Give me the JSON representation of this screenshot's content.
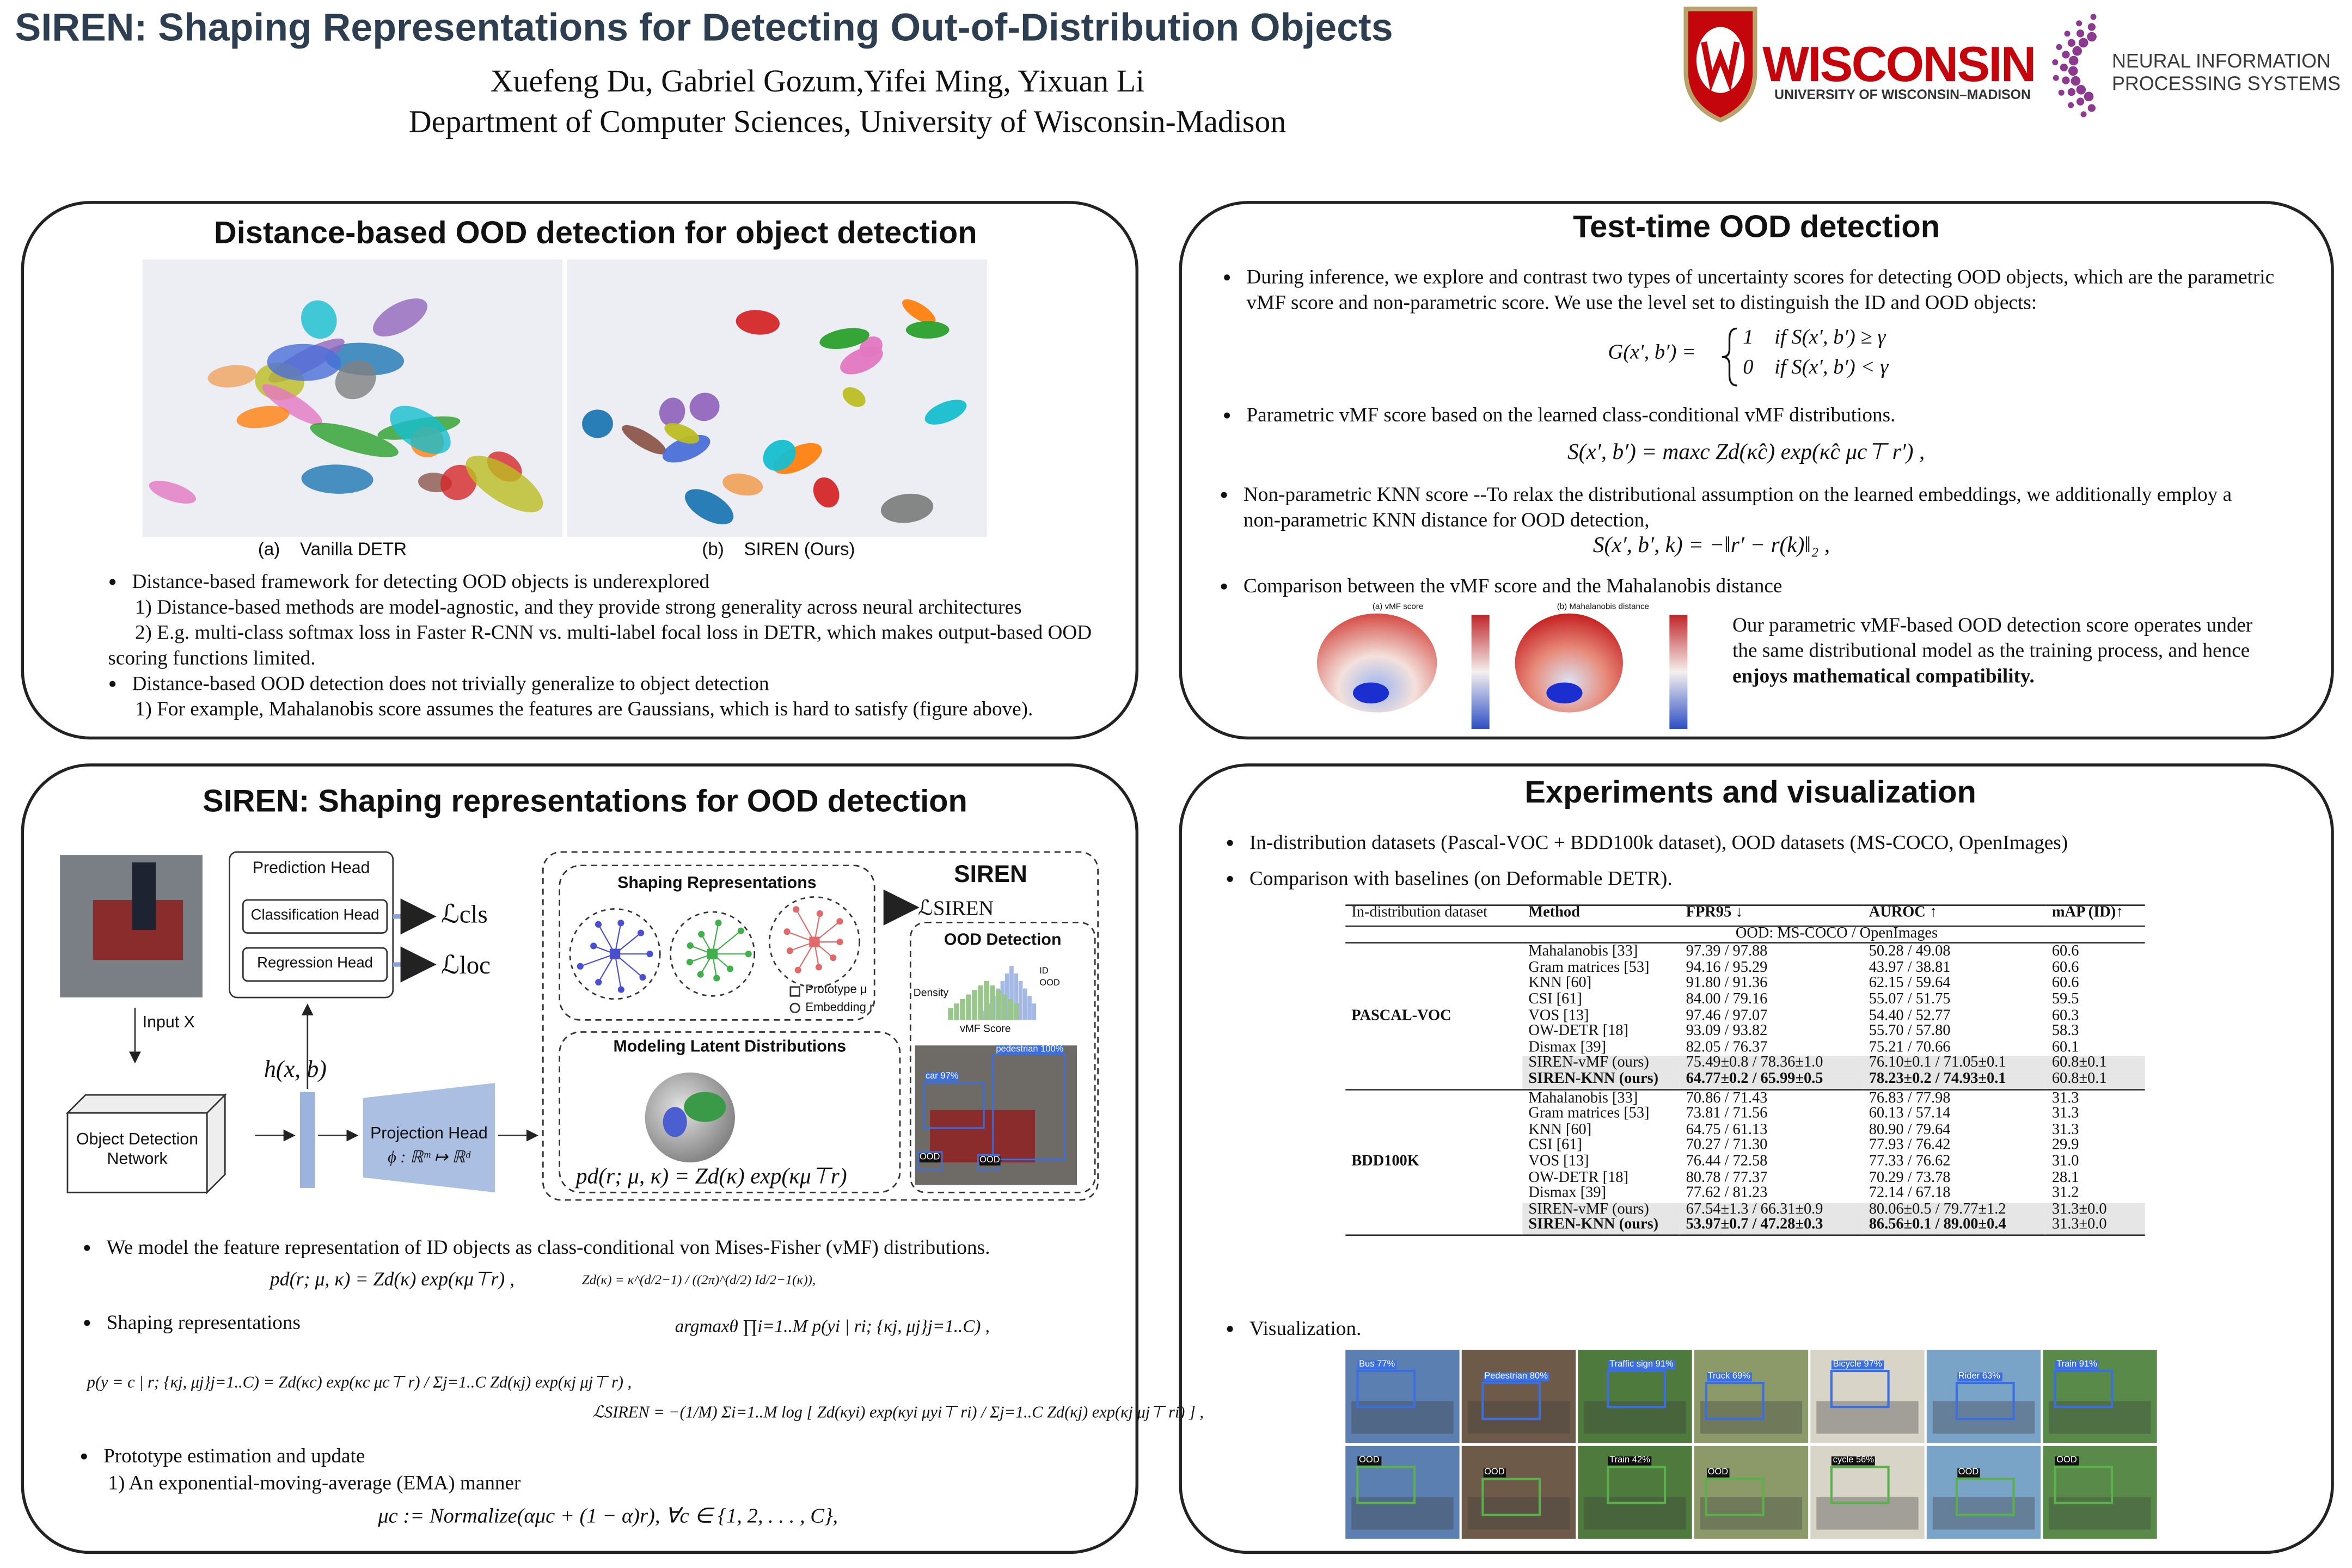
{
  "header": {
    "title": "SIREN: Shaping Representations  for Detecting Out-of-Distribution Objects",
    "authors": "Xuefeng Du, Gabriel Gozum,Yifei Ming, Yixuan Li",
    "affiliation": "Department of Computer Sciences, University of Wisconsin-Madison",
    "logo_wisconsin": "WISCONSIN",
    "logo_wisconsin_sub": "UNIVERSITY OF WISCONSIN–MADISON",
    "logo_neurips": [
      "NEURAL INFORMATION",
      "PROCESSING SYSTEMS"
    ]
  },
  "panel1": {
    "title": "Distance-based OOD detection for object detection",
    "captions": [
      "(a)    Vanilla DETR",
      "(b)    SIREN (Ours)"
    ],
    "bullets": [
      {
        "text": "Distance-based framework for detecting OOD objects is underexplored",
        "sub": [
          "1) Distance-based methods are model-agnostic, and they provide strong generality across neural architectures",
          "2) E.g. multi-class softmax loss in Faster R-CNN vs. multi-label focal loss in DETR, which makes output-based OOD scoring functions limited."
        ]
      },
      {
        "text": "Distance-based OOD detection does not trivially generalize to object detection",
        "sub": [
          "1) For example, Mahalanobis score assumes the features are Gaussians, which is hard to satisfy (figure above)."
        ]
      }
    ]
  },
  "panel2": {
    "title": "Test-time OOD detection",
    "bullets": [
      "During inference, we explore and contrast two types of uncertainty scores for detecting OOD objects, which are the parametric vMF score and non-parametric score. We use the level set to distinguish the ID and OOD objects:",
      "Parametric vMF score based on the learned class-conditional vMF distributions.",
      "Non-parametric KNN score --To relax the distributional assumption on the learned embeddings, we additionally employ a non-parametric KNN distance for OOD detection,",
      "Comparison between the vMF score and the Mahalanobis distance"
    ],
    "eq_level_set": {
      "lhs": "G(x′, b′) =",
      "cases": [
        "1    if S(x′, b′) ≥ γ",
        "0    if S(x′, b′) < γ"
      ]
    },
    "eq_vmf": "S(x′, b′) = maxc Zd(κ̂c) exp(κ̂c μc⊤ r′) ,",
    "eq_knn": "S(x′, b′, k) = −‖r′ − r(k)‖₂ ,",
    "figure_captions": [
      "(a) vMF score",
      "(b) Mahalanobis distance"
    ],
    "figure_text": [
      "Our parametric vMF-based OOD detection score operates under the same distributional model as the training process, and hence ",
      "enjoys mathematical compatibility."
    ]
  },
  "panel3": {
    "title": "SIREN: Shaping representations for OOD detection",
    "diagram": {
      "prediction_head": "Prediction Head",
      "classification_head": "Classification Head",
      "regression_head": "Regression Head",
      "loss_cls": "ℒcls",
      "loss_loc": "ℒloc",
      "input": "Input X",
      "feature": "h(x, b)",
      "detector": [
        "Object Detection",
        "Network"
      ],
      "projection_head": "Projection Head",
      "projection_map": "ϕ : ℝᵐ ↦ ℝᵈ",
      "siren": "SIREN",
      "shaping": "Shaping Representations",
      "loss_siren": "ℒSIREN",
      "prototype": "Prototype μ",
      "embedding": "Embedding r",
      "modeling": "Modeling Latent Distributions",
      "vmf_density": "pd(r; μ, κ) = Zd(κ) exp(κμ⊤r)",
      "ood_detection": "OOD Detection",
      "density": "Density",
      "vmf_score": "vMF Score",
      "legend": [
        "ID",
        "OOD"
      ],
      "photo_labels": [
        "pedestrian 100%",
        "car 97%",
        "OOD",
        "OOD"
      ]
    },
    "bullets": [
      "We model the feature representation of ID objects as class-conditional von Mises-Fisher (vMF) distributions.",
      "Shaping representations",
      "Prototype estimation and update"
    ],
    "sub": "1) An exponential-moving-average (EMA) manner",
    "eq_vmf": "pd(r; μ, κ) = Zd(κ) exp(κμ⊤r) ,",
    "eq_norm": "Zd(κ) = κ^(d/2−1) / ((2π)^(d/2) Id/2−1(κ)),",
    "eq_argmax": "argmaxθ ∏i=1..M p(yi | ri; {κj, μj}j=1..C) ,",
    "eq_posterior": "p(y = c | r; {κj, μj}j=1..C) = Zd(κc) exp(κc μc⊤ r) / Σj=1..C Zd(κj) exp(κj μj⊤ r) ,",
    "eq_loss": "ℒSIREN = −(1/M) Σi=1..M log [ Zd(κyi) exp(κyi μyi⊤ ri) / Σj=1..C Zd(κj) exp(κj μj⊤ ri) ] ,",
    "eq_ema": "μc := Normalize(αμc + (1 − α)r), ∀c ∈ {1, 2, . . . , C},"
  },
  "panel4": {
    "title": "Experiments and visualization",
    "bullets": [
      "In-distribution datasets (Pascal-VOC + BDD100k dataset), OOD datasets (MS-COCO, OpenImages)",
      "Comparison with baselines (on Deformable DETR).",
      "Visualization."
    ],
    "table": {
      "columns": [
        "In-distribution dataset",
        "Method",
        "FPR95 ↓",
        "AUROC ↑",
        "mAP (ID)↑"
      ],
      "subheader": "OOD: MS-COCO / OpenImages",
      "groups": [
        {
          "name": "PASCAL-VOC",
          "rows": [
            [
              "Mahalanobis [33]",
              "97.39 / 97.88",
              "50.28 / 49.08",
              "60.6"
            ],
            [
              "Gram matrices [53]",
              "94.16 / 95.29",
              "43.97 / 38.81",
              "60.6"
            ],
            [
              "KNN [60]",
              "91.80 / 91.36",
              "62.15 / 59.64",
              "60.6"
            ],
            [
              "CSI [61]",
              "84.00 / 79.16",
              "55.07 / 51.75",
              "59.5"
            ],
            [
              "VOS [13]",
              "97.46 / 97.07",
              "54.40 / 52.77",
              "60.3"
            ],
            [
              "OW-DETR [18]",
              "93.09 / 93.82",
              "55.70 / 57.80",
              "58.3"
            ],
            [
              "Dismax [39]",
              "82.05 / 76.37",
              "75.21 / 70.66",
              "60.1"
            ],
            [
              "SIREN-vMF (ours)",
              "75.49±0.8 / 78.36±1.0",
              "76.10±0.1 / 71.05±0.1",
              "60.8±0.1"
            ],
            [
              "SIREN-KNN (ours)",
              "64.77±0.2 / 65.99±0.5",
              "78.23±0.2 / 74.93±0.1",
              "60.8±0.1"
            ]
          ]
        },
        {
          "name": "BDD100K",
          "rows": [
            [
              "Mahalanobis [33]",
              "70.86 / 71.43",
              "76.83 / 77.98",
              "31.3"
            ],
            [
              "Gram matrices [53]",
              "73.81 / 71.56",
              "60.13 / 57.14",
              "31.3"
            ],
            [
              "KNN [60]",
              "64.75 / 61.13",
              "80.90 / 79.64",
              "31.3"
            ],
            [
              "CSI [61]",
              "70.27 / 71.30",
              "77.93 / 76.42",
              "29.9"
            ],
            [
              "VOS [13]",
              "76.44 / 72.58",
              "77.33 / 76.62",
              "31.0"
            ],
            [
              "OW-DETR [18]",
              "80.78 / 77.37",
              "70.29 / 73.78",
              "28.1"
            ],
            [
              "Dismax [39]",
              "77.62 / 81.23",
              "72.14 / 67.18",
              "31.2"
            ],
            [
              "SIREN-vMF (ours)",
              "67.54±1.3 / 66.31±0.9",
              "80.06±0.5 / 79.77±1.2",
              "31.3±0.0"
            ],
            [
              "SIREN-KNN (ours)",
              "53.97±0.7 / 47.28±0.3",
              "86.56±0.1 / 89.00±0.4",
              "31.3±0.0"
            ]
          ]
        }
      ]
    },
    "visualization": [
      [
        "Bus 77%",
        "Pedestrian 80%",
        "Traffic sign 91%",
        "Truck 69%",
        "Bicycle 97%",
        "Rider 63%",
        "Train 91%"
      ],
      [
        "OOD",
        "OOD",
        "Train 42%",
        "OOD",
        "cycle 56%",
        "OOD",
        "OOD"
      ]
    ]
  }
}
